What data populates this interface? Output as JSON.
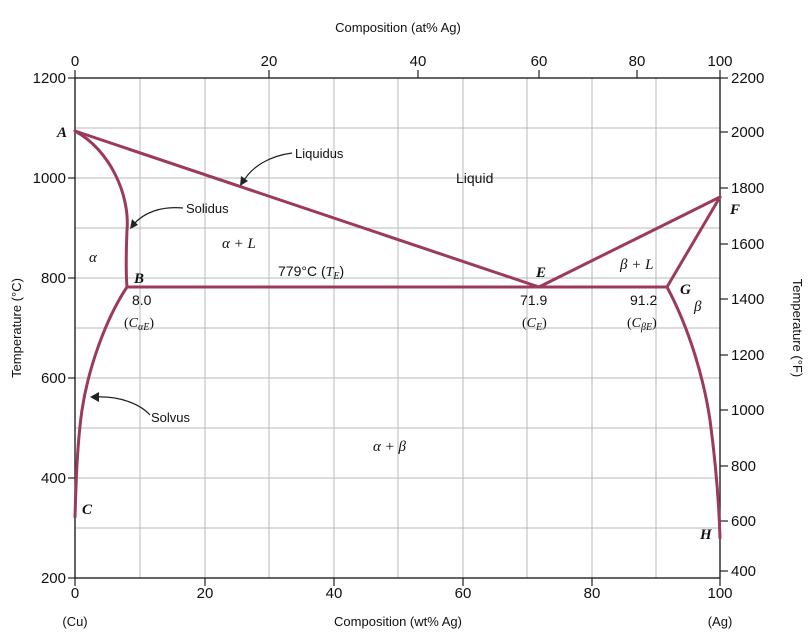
{
  "axes": {
    "top_title": "Composition (at% Ag)",
    "bottom_title": "Composition (wt% Ag)",
    "left_title": "Temperature (°C)",
    "right_title": "Temperature (°F)",
    "bottom_ticks": [
      "0",
      "20",
      "40",
      "60",
      "80",
      "100"
    ],
    "top_ticks": [
      "0",
      "20",
      "40",
      "60",
      "80",
      "100"
    ],
    "left_ticks": [
      "1200",
      "1000",
      "800",
      "600",
      "400",
      "200"
    ],
    "right_ticks": [
      "2200",
      "2000",
      "1800",
      "1600",
      "1400",
      "1200",
      "1000",
      "800",
      "600",
      "400"
    ],
    "bottom_left_end": "(Cu)",
    "bottom_right_end": "(Ag)"
  },
  "regions": {
    "liquid": "Liquid",
    "alpha": "α",
    "beta": "β",
    "alpha_plus_l": "α + L",
    "beta_plus_l": "β + L",
    "alpha_plus_beta": "α + β"
  },
  "points": {
    "A": "A",
    "B": "B",
    "C": "C",
    "E": "E",
    "F": "F",
    "G": "G",
    "H": "H"
  },
  "annotations": {
    "liquidus": "Liquidus",
    "solidus": "Solidus",
    "solvus": "Solvus",
    "eutectic_temp": "779°C (",
    "eutectic_temp_sym": "T",
    "eutectic_temp_sub": "E",
    "eutectic_temp_close": ")",
    "b_value": "8.0",
    "b_sym_open": "(",
    "b_sym": "C",
    "b_sub": "αE",
    "b_close": ")",
    "e_value": "71.9",
    "e_sym_open": "(",
    "e_sym": "C",
    "e_sub": "E",
    "e_close": ")",
    "g_value": "91.2",
    "g_sym_open": "(",
    "g_sym": "C",
    "g_sub": "βE",
    "g_close": ")"
  },
  "colors": {
    "phase_line": "#9c3a5a"
  }
}
